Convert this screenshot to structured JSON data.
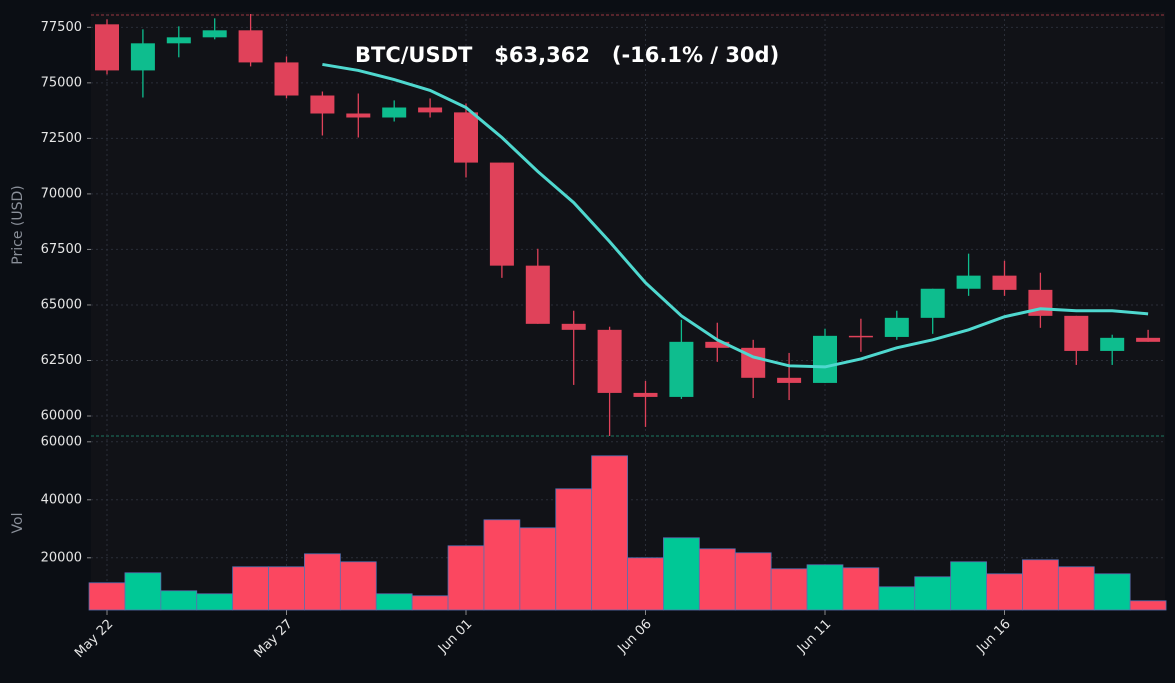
{
  "chart_data": [
    {
      "type": "candlestick",
      "title": "BTC/USDT   $63,362   (-16.1% / 30d)",
      "y_label": "Price (USD)",
      "open": [
        77635,
        75560,
        76780,
        77050,
        77365,
        75920,
        74430,
        73620,
        73440,
        73890,
        73670,
        71410,
        66770,
        64150,
        63880,
        61040,
        60860,
        63340,
        63070,
        61720,
        61490,
        63610,
        63560,
        64420,
        65730,
        66320,
        65680,
        64510,
        62930,
        63520
      ],
      "high": [
        77860,
        77410,
        77545,
        77905,
        78100,
        76190,
        74610,
        74520,
        74210,
        74300,
        74070,
        71410,
        67530,
        64740,
        64020,
        61580,
        64330,
        64200,
        63430,
        62840,
        63930,
        64380,
        64740,
        65730,
        67310,
        66990,
        66450,
        64510,
        63660,
        63880
      ],
      "low": [
        75380,
        74340,
        76150,
        76960,
        75740,
        74300,
        72630,
        72540,
        73260,
        73440,
        70740,
        66220,
        64150,
        61400,
        59100,
        59510,
        60770,
        62440,
        60810,
        60720,
        61490,
        62890,
        63430,
        63700,
        65410,
        65410,
        63970,
        62300,
        62300,
        63340
      ],
      "close": [
        75560,
        76780,
        77050,
        77365,
        75920,
        74430,
        73620,
        73440,
        73890,
        73670,
        71410,
        66770,
        64150,
        63880,
        61040,
        60860,
        63340,
        63070,
        61720,
        61490,
        63610,
        63560,
        64420,
        65730,
        66320,
        65680,
        64510,
        62930,
        63520,
        63340
      ],
      "up_color": "#0ebd8e",
      "down_color": "#e0425a",
      "ma": {
        "color": "#4fd8cf",
        "values": [
          null,
          null,
          null,
          null,
          null,
          null,
          75830,
          75560,
          75150,
          74660,
          73890,
          72540,
          71010,
          69610,
          67850,
          66000,
          64510,
          63430,
          62660,
          62260,
          62210,
          62570,
          63070,
          63430,
          63880,
          64470,
          64830,
          64740,
          64740,
          64600
        ]
      },
      "ylim": [
        59100,
        78100
      ],
      "yticks": [
        60000,
        62500,
        65000,
        67500,
        70000,
        72500,
        75000,
        77500
      ],
      "grid": true
    },
    {
      "type": "bar",
      "y_label": "Vol",
      "categories": [
        "May 22",
        null,
        null,
        null,
        null,
        "May 27",
        null,
        null,
        null,
        null,
        "Jun 01",
        null,
        null,
        null,
        null,
        "Jun 06",
        null,
        null,
        null,
        null,
        "Jun 11",
        null,
        null,
        null,
        null,
        "Jun 16",
        null,
        null,
        null,
        null
      ],
      "values": [
        11380,
        14830,
        8620,
        7590,
        16900,
        16900,
        21380,
        18620,
        7590,
        6900,
        24140,
        33100,
        30340,
        43790,
        55170,
        20000,
        26900,
        23100,
        21720,
        16210,
        17590,
        16550,
        10000,
        13450,
        18620,
        14480,
        19310,
        16900,
        14480,
        5170
      ],
      "up_color": "#00c896",
      "down_color": "#fb4760",
      "ylim": [
        2000,
        62000
      ],
      "yticks": [
        20000,
        40000,
        60000
      ],
      "grid": true
    }
  ]
}
